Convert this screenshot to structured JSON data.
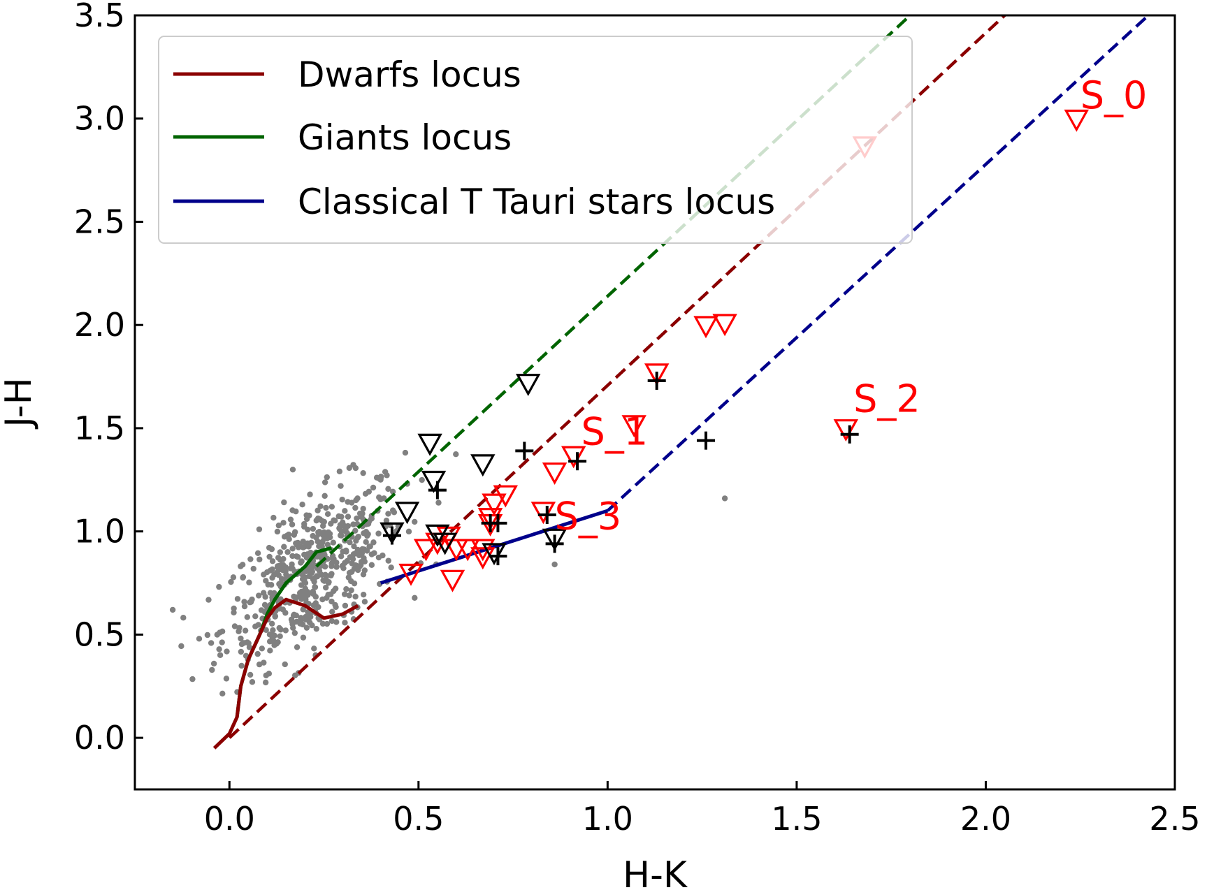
{
  "chart_data": {
    "type": "scatter",
    "xlabel": "H-K",
    "ylabel": "J-H",
    "xlim": [
      -0.25,
      2.5
    ],
    "ylim": [
      -0.25,
      3.5
    ],
    "xticks": [
      "0.0",
      "0.5",
      "1.0",
      "1.5",
      "2.0",
      "2.5"
    ],
    "yticks": [
      "0.0",
      "0.5",
      "1.0",
      "1.5",
      "2.0",
      "2.5",
      "3.0",
      "3.5"
    ],
    "grid": false,
    "legend": {
      "placement": "upper-left",
      "entries": [
        {
          "label": "Dwarfs locus",
          "color": "#8b0000"
        },
        {
          "label": "Giants locus",
          "color": "#006400"
        },
        {
          "label": "Classical T Tauri stars locus",
          "color": "#00008b"
        }
      ]
    },
    "loci": {
      "dwarfs": [
        [
          -0.04,
          -0.05
        ],
        [
          0.0,
          0.02
        ],
        [
          0.02,
          0.1
        ],
        [
          0.03,
          0.25
        ],
        [
          0.05,
          0.38
        ],
        [
          0.08,
          0.5
        ],
        [
          0.1,
          0.58
        ],
        [
          0.12,
          0.63
        ],
        [
          0.15,
          0.67
        ],
        [
          0.2,
          0.64
        ],
        [
          0.25,
          0.58
        ],
        [
          0.3,
          0.6
        ],
        [
          0.34,
          0.64
        ]
      ],
      "giants": [
        [
          0.02,
          0.1
        ],
        [
          0.03,
          0.25
        ],
        [
          0.05,
          0.38
        ],
        [
          0.08,
          0.5
        ],
        [
          0.1,
          0.6
        ],
        [
          0.12,
          0.67
        ],
        [
          0.15,
          0.75
        ],
        [
          0.2,
          0.83
        ],
        [
          0.23,
          0.9
        ],
        [
          0.27,
          0.92
        ]
      ],
      "ctts": [
        [
          0.4,
          0.75
        ],
        [
          1.0,
          1.1
        ]
      ]
    },
    "reddening_lines": [
      {
        "name": "giants-reddening",
        "color": "#006400",
        "x": [
          0.23,
          1.8
        ],
        "y": [
          0.83,
          3.5
        ]
      },
      {
        "name": "dwarfs-reddening",
        "color": "#8b0000",
        "x": [
          0.0,
          2.05
        ],
        "y": [
          0.0,
          3.5
        ]
      },
      {
        "name": "ctts-reddening",
        "color": "#00008b",
        "x": [
          1.0,
          2.43
        ],
        "y": [
          1.1,
          3.5
        ]
      }
    ],
    "series": [
      {
        "marker": "triangle-down-open",
        "color": "#ff0000",
        "x": [
          2.24,
          1.68,
          1.26,
          1.31,
          1.13,
          1.07,
          0.86,
          0.91,
          0.73,
          0.7,
          0.67,
          0.63,
          0.58,
          0.55,
          0.52,
          0.6,
          0.67,
          0.69,
          0.48,
          0.59,
          0.69,
          0.83,
          1.63
        ],
        "y": [
          3.0,
          2.87,
          2.0,
          2.01,
          1.77,
          1.52,
          1.29,
          1.37,
          1.18,
          1.14,
          0.92,
          0.92,
          0.98,
          0.95,
          0.92,
          0.92,
          0.88,
          1.07,
          0.8,
          0.77,
          1.04,
          1.1,
          1.5
        ]
      },
      {
        "marker": "triangle-down-open",
        "color": "#000000",
        "x": [
          0.79,
          0.53,
          0.67,
          0.47,
          0.54,
          0.43,
          0.55,
          0.57,
          0.7,
          0.86
        ],
        "y": [
          1.72,
          1.43,
          1.33,
          1.1,
          1.25,
          1.0,
          0.99,
          0.95,
          0.9,
          0.97
        ]
      },
      {
        "marker": "plus",
        "color": "#000000",
        "x": [
          1.13,
          1.26,
          1.64,
          0.92,
          0.78,
          0.55,
          0.69,
          0.71,
          0.84,
          0.86,
          0.43,
          0.71
        ],
        "y": [
          1.73,
          1.44,
          1.47,
          1.34,
          1.39,
          1.2,
          1.04,
          1.04,
          1.08,
          0.94,
          0.98,
          0.88
        ]
      }
    ],
    "field_stars": {
      "marker": "dot",
      "color": "#808080",
      "count": 560,
      "center": [
        0.22,
        0.8
      ],
      "x_range": [
        -0.15,
        1.31
      ],
      "y_range": [
        0.1,
        1.5
      ],
      "outliers": [
        [
          -0.15,
          0.62
        ],
        [
          -0.08,
          0.48
        ],
        [
          1.31,
          1.16
        ],
        [
          0.86,
          0.84
        ]
      ]
    },
    "annotations": [
      {
        "text": "S_0",
        "x": 2.25,
        "y": 3.05
      },
      {
        "text": "S_1",
        "x": 0.93,
        "y": 1.42
      },
      {
        "text": "S_2",
        "x": 1.65,
        "y": 1.58
      },
      {
        "text": "S_3",
        "x": 0.86,
        "y": 1.01
      }
    ]
  }
}
